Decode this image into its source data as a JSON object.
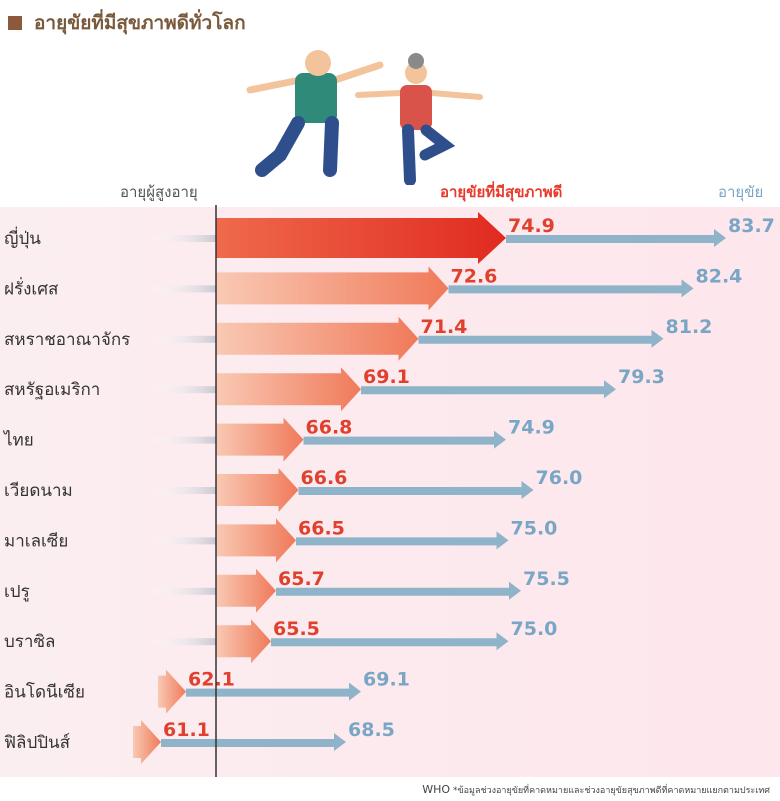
{
  "title": "อายุขัยที่มีสุขภาพดีทั่วโลก",
  "chart_data": {
    "type": "bar",
    "title": "อายุขัยที่มีสุขภาพดีทั่วโลก",
    "legend": {
      "baseline": "อายุผู้สูงอายุ",
      "healthy": "อายุขัยที่มีสุขภาพดี",
      "life": "อายุขัย"
    },
    "categories": [
      "ญี่ปุ่น",
      "ฝรั่งเศส",
      "สหราชอาณาจักร",
      "สหรัฐอเมริกา",
      "ไทย",
      "เวียดนาม",
      "มาเลเซีย",
      "เปรู",
      "บราซิล",
      "อินโดนีเซีย",
      "ฟิลิปปินส์"
    ],
    "series": [
      {
        "name": "อายุขัยที่มีสุขภาพดี",
        "values": [
          74.9,
          72.6,
          71.4,
          69.1,
          66.8,
          66.6,
          66.5,
          65.7,
          65.5,
          62.1,
          61.1
        ]
      },
      {
        "name": "อายุขัย",
        "values": [
          83.7,
          82.4,
          81.2,
          79.3,
          74.9,
          76.0,
          75.0,
          75.5,
          75.0,
          69.1,
          68.5
        ]
      }
    ],
    "colors": {
      "healthy": "#e8392a",
      "healthy_light": "#f4a58a",
      "life": "#8fb3c8",
      "life_label": "#7aa6c6",
      "baseline": "#333333"
    }
  },
  "footer": {
    "source": "WHO",
    "note": "*ข้อมูลช่วงอายุขัยที่คาดหมายและช่วงอายุขัยสุขภาพดีที่คาดหมายแยกตามประเทศ"
  }
}
